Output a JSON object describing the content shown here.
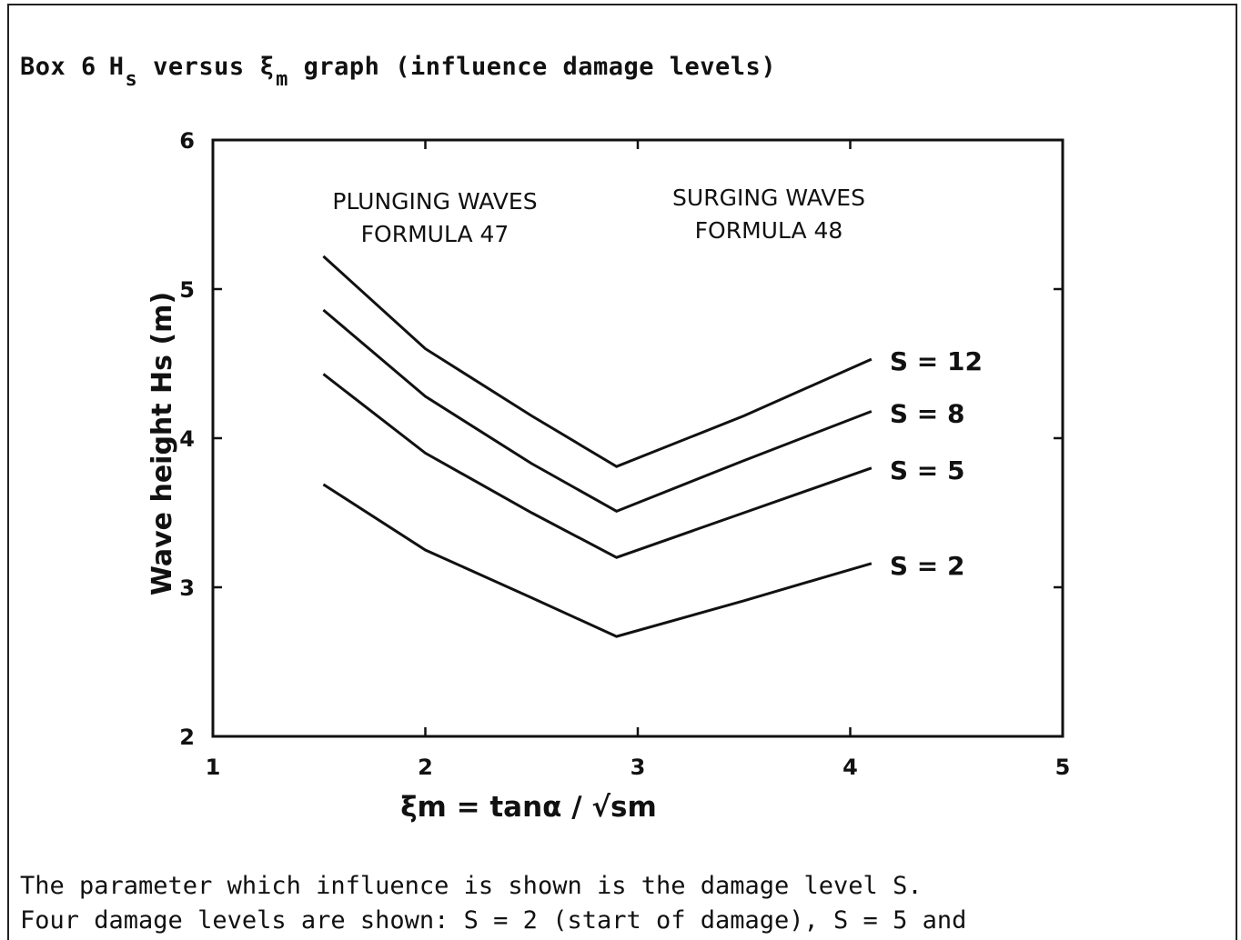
{
  "header": {
    "box_label": "Box 6",
    "h_symbol": "H",
    "h_subscript": "s",
    "versus": "versus",
    "xi_symbol": "ξ",
    "xi_subscript": "m",
    "rest": "graph (influence damage levels)"
  },
  "chart_data": {
    "type": "line",
    "xlim": [
      1,
      5
    ],
    "ylim": [
      2,
      6
    ],
    "xticks": [
      "1",
      "2",
      "3",
      "4",
      "5"
    ],
    "yticks": [
      "2",
      "3",
      "4",
      "5",
      "6"
    ],
    "xlabel": "ξm = tanα / √sm",
    "ylabel": "Wave height Hs (m)",
    "grid": false,
    "annotations": [
      {
        "text": "PLUNGING WAVES",
        "line2": "FORMULA 47"
      },
      {
        "text": "SURGING WAVES",
        "line2": "FORMULA 48"
      }
    ],
    "series": [
      {
        "name": "S = 12",
        "x": [
          1.52,
          2.0,
          2.5,
          2.9,
          3.5,
          4.1
        ],
        "y": [
          5.22,
          4.6,
          4.15,
          3.81,
          4.15,
          4.53
        ]
      },
      {
        "name": "S = 8",
        "x": [
          1.52,
          2.0,
          2.5,
          2.9,
          3.5,
          4.1
        ],
        "y": [
          4.86,
          4.28,
          3.83,
          3.51,
          3.85,
          4.18
        ]
      },
      {
        "name": "S = 5",
        "x": [
          1.52,
          2.0,
          2.5,
          2.9,
          3.5,
          4.1
        ],
        "y": [
          4.43,
          3.9,
          3.5,
          3.2,
          3.5,
          3.8
        ]
      },
      {
        "name": "S = 2",
        "x": [
          1.52,
          2.0,
          2.5,
          2.9,
          3.5,
          4.1
        ],
        "y": [
          3.69,
          3.25,
          2.93,
          2.67,
          2.91,
          3.16
        ]
      }
    ],
    "series_labels": [
      "S = 12",
      "S = 8",
      "S = 5",
      "S = 2"
    ]
  },
  "caption": {
    "line1": "The parameter which influence is shown is the damage level S.",
    "line2": "Four damage levels are shown: S = 2 (start of damage), S = 5 and"
  }
}
